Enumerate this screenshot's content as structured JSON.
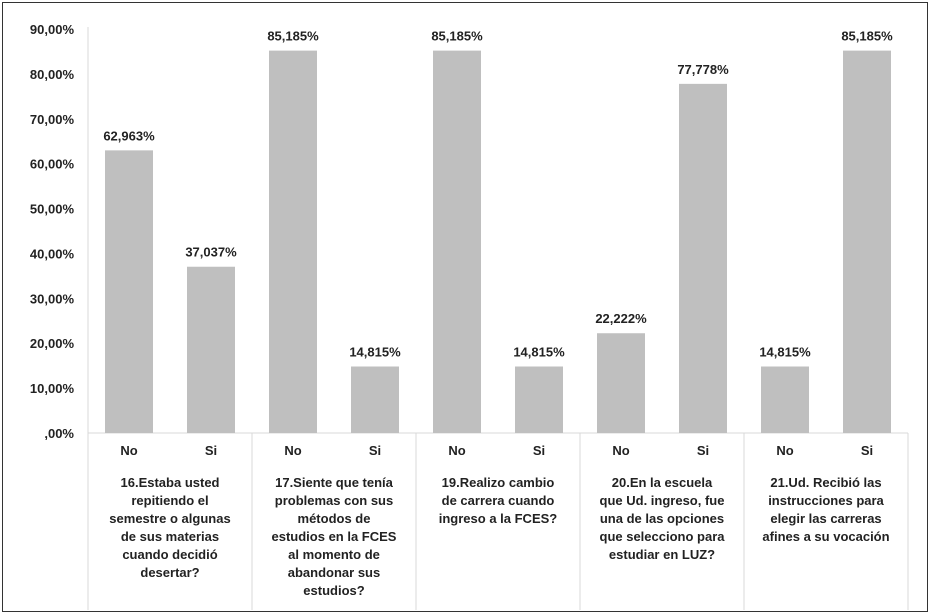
{
  "chart_data": {
    "type": "bar",
    "y_ticks": [
      ",00%",
      "10,00%",
      "20,00%",
      "30,00%",
      "40,00%",
      "50,00%",
      "60,00%",
      "70,00%",
      "80,00%",
      "90,00%"
    ],
    "ylim": [
      0,
      90
    ],
    "grid": false,
    "bar_color": "#bfbfbf",
    "groups": [
      {
        "label_lines": [
          "16.Estaba usted",
          "repitiendo el",
          "semestre o algunas",
          "de sus materias",
          "cuando decidió",
          "desertar?"
        ],
        "categories": [
          "No",
          "Si"
        ],
        "values": [
          62.963,
          37.037
        ],
        "data_labels": [
          "62,963%",
          "37,037%"
        ]
      },
      {
        "label_lines": [
          "17.Siente que tenía",
          "problemas con sus",
          "métodos de",
          "estudios en la FCES",
          "al momento de",
          "abandonar sus",
          "estudios?"
        ],
        "categories": [
          "No",
          "Si"
        ],
        "values": [
          85.185,
          14.815
        ],
        "data_labels": [
          "85,185%",
          "14,815%"
        ]
      },
      {
        "label_lines": [
          "19.Realizo cambio",
          "de carrera cuando",
          "ingreso a la FCES?"
        ],
        "categories": [
          "No",
          "Si"
        ],
        "values": [
          85.185,
          14.815
        ],
        "data_labels": [
          "85,185%",
          "14,815%"
        ]
      },
      {
        "label_lines": [
          "20.En la escuela",
          "que Ud. ingreso, fue",
          "una de las opciones",
          "que selecciono para",
          "estudiar en LUZ?"
        ],
        "categories": [
          "No",
          "Si"
        ],
        "values": [
          22.222,
          77.778
        ],
        "data_labels": [
          "22,222%",
          "77,778%"
        ]
      },
      {
        "label_lines": [
          "21.Ud. Recibió las",
          "instrucciones para",
          "elegir las carreras",
          "afines a su vocación"
        ],
        "categories": [
          "No",
          "Si"
        ],
        "values": [
          14.815,
          85.185
        ],
        "data_labels": [
          "14,815%",
          "85,185%"
        ]
      }
    ]
  }
}
